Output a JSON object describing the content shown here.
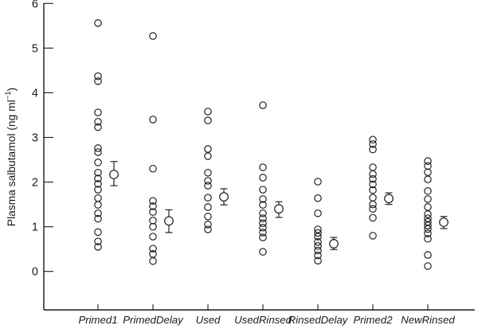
{
  "figure": {
    "background": "#ffffff",
    "ink_color": "#1a1a1a"
  },
  "chart_data": {
    "type": "scatter",
    "title": "",
    "xlabel": "",
    "ylabel": "Plasma salbutamol (ng ml−1)",
    "ylabel_parts": {
      "pre": "Plasma salbutamol (ng ml",
      "sup": "−1",
      "post": ")"
    },
    "ylim": [
      -0.9,
      6
    ],
    "yticks": [
      "6",
      "5",
      "4",
      "3",
      "2",
      "1",
      "0"
    ],
    "ytick_values": [
      6,
      5,
      4,
      3,
      2,
      1,
      0
    ],
    "grid": false,
    "legend": "none",
    "marker": "open-circle",
    "mean_marker": "open-circle-with-error-bar",
    "categories": [
      "Primed1",
      "PrimedDelay",
      "Used",
      "UsedRinsed",
      "RinsedDelay",
      "Primed2",
      "NewRinsed"
    ],
    "series": [
      {
        "name": "Primed1",
        "points": [
          5.56,
          4.37,
          4.26,
          3.56,
          3.35,
          3.23,
          2.76,
          2.67,
          2.44,
          2.21,
          2.08,
          1.96,
          1.83,
          1.64,
          1.49,
          1.3,
          1.18,
          0.88,
          0.67,
          0.55
        ],
        "mean": 2.17,
        "ci": [
          1.92,
          2.46
        ]
      },
      {
        "name": "PrimedDelay",
        "points": [
          5.27,
          3.4,
          2.3,
          1.58,
          1.46,
          1.33,
          1.14,
          1.0,
          0.78,
          0.51,
          0.39,
          0.23
        ],
        "mean": 1.13,
        "ci": [
          0.87,
          1.38
        ]
      },
      {
        "name": "Used",
        "points": [
          3.58,
          3.38,
          2.74,
          2.58,
          2.21,
          2.03,
          1.92,
          1.65,
          1.44,
          1.23,
          1.05,
          0.94
        ],
        "mean": 1.67,
        "ci": [
          1.49,
          1.85
        ]
      },
      {
        "name": "UsedRinsed",
        "points": [
          3.72,
          2.33,
          2.1,
          1.83,
          1.62,
          1.49,
          1.3,
          1.19,
          1.08,
          0.98,
          0.87,
          0.76,
          0.44
        ],
        "mean": 1.4,
        "ci": [
          1.21,
          1.56
        ]
      },
      {
        "name": "RinsedDelay",
        "points": [
          2.01,
          1.64,
          1.3,
          0.94,
          0.86,
          0.78,
          0.66,
          0.57,
          0.47,
          0.36,
          0.24
        ],
        "mean": 0.62,
        "ci": [
          0.49,
          0.76
        ]
      },
      {
        "name": "Primed2",
        "points": [
          2.95,
          2.85,
          2.73,
          2.33,
          2.18,
          2.07,
          1.95,
          1.82,
          1.65,
          1.5,
          1.4,
          1.2,
          0.8
        ],
        "mean": 1.63,
        "ci": [
          1.5,
          1.76
        ]
      },
      {
        "name": "NewRinsed",
        "points": [
          2.47,
          2.36,
          2.22,
          2.06,
          1.8,
          1.62,
          1.44,
          1.28,
          1.19,
          1.11,
          1.03,
          0.95,
          0.85,
          0.73,
          0.37,
          0.12
        ],
        "mean": 1.1,
        "ci": [
          0.96,
          1.23
        ]
      }
    ]
  }
}
